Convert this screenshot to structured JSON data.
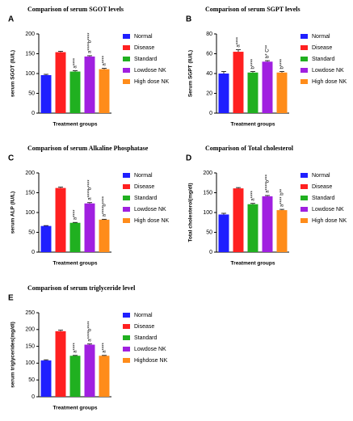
{
  "chart_data": [
    {
      "type": "bar",
      "panel": "A",
      "title": "Comparison of serum SGOT levels",
      "ylabel": "serum SGOT  (IU/L)",
      "xlabel": "Treatment groups",
      "categories": [
        "Normal",
        "Disease",
        "Standard",
        "Lowdose NK",
        "High dose NK"
      ],
      "colors": [
        "#1f1fff",
        "#ff2020",
        "#20b020",
        "#a020e0",
        "#ff8c1a"
      ],
      "values": [
        96,
        154,
        105,
        143,
        111
      ],
      "errors": [
        2,
        2,
        2,
        2,
        2
      ],
      "annotations": [
        null,
        null,
        "a****",
        "a****b****",
        "a****"
      ],
      "ylim": [
        0,
        200
      ],
      "yticks": [
        0,
        50,
        100,
        150,
        200
      ]
    },
    {
      "type": "bar",
      "panel": "B",
      "title": "Comparison of serum SGPT levels",
      "ylabel": "Serum SGPT  (IU/L)",
      "xlabel": "Treatment groups",
      "categories": [
        "Normal",
        "Disease",
        "Standard",
        "Lowdose NK",
        "High dose NK"
      ],
      "colors": [
        "#1f1fff",
        "#ff2020",
        "#20b020",
        "#a020e0",
        "#ff8c1a"
      ],
      "values": [
        40,
        62,
        41,
        52,
        41
      ],
      "errors": [
        2,
        2,
        1,
        1,
        1
      ],
      "annotations": [
        null,
        "a****",
        "b****",
        "b* C**",
        "b****"
      ],
      "ylim": [
        0,
        80
      ],
      "yticks": [
        0,
        20,
        40,
        60,
        80
      ]
    },
    {
      "type": "bar",
      "panel": "C",
      "title": "Comparison of serum Alkaline Phosphatase",
      "ylabel": "serum ALP  (IU/L)",
      "xlabel": "Treatment groups",
      "categories": [
        "Normal",
        "Disease",
        "Standard",
        "Lowdose NK",
        "High dose NK"
      ],
      "colors": [
        "#1f1fff",
        "#ff2020",
        "#20b020",
        "#a020e0",
        "#ff8c1a"
      ],
      "values": [
        66,
        162,
        74,
        123,
        82
      ],
      "errors": [
        1,
        2,
        1,
        2,
        1
      ],
      "annotations": [
        null,
        null,
        "a****",
        "a****b****",
        "a****b****"
      ],
      "ylim": [
        0,
        200
      ],
      "yticks": [
        0,
        50,
        100,
        150,
        200
      ]
    },
    {
      "type": "bar",
      "panel": "D",
      "title": "Comparison of Total cholesterol",
      "ylabel": "Total cholesterol(mg/dl)",
      "xlabel": "Treatment groups",
      "categories": [
        "Normal",
        "Disease",
        "Standard",
        "Lowdose NK",
        "High dose NK"
      ],
      "colors": [
        "#1f1fff",
        "#ff2020",
        "#20b020",
        "#a020e0",
        "#ff8c1a"
      ],
      "values": [
        95,
        161,
        121,
        141,
        106
      ],
      "errors": [
        3,
        2,
        2,
        2,
        2
      ],
      "annotations": [
        null,
        null,
        "a****",
        "a****b***",
        "a**** b**"
      ],
      "ylim": [
        0,
        200
      ],
      "yticks": [
        0,
        50,
        100,
        150,
        200
      ]
    },
    {
      "type": "bar",
      "panel": "E",
      "title": "Comparison of serum triglyceride level",
      "ylabel": "serum triglycerides(mg/dl)",
      "xlabel": "Treatment groups",
      "categories": [
        "Normal",
        "Disease",
        "Standard",
        "Lowdose NK",
        "Highdose NK"
      ],
      "colors": [
        "#1f1fff",
        "#ff2020",
        "#20b020",
        "#a020e0",
        "#ff8c1a"
      ],
      "values": [
        108,
        195,
        122,
        155,
        122
      ],
      "errors": [
        2,
        3,
        1,
        2,
        1
      ],
      "annotations": [
        null,
        null,
        "a****",
        "a****b****",
        "a****"
      ],
      "ylim": [
        0,
        250
      ],
      "yticks": [
        0,
        50,
        100,
        150,
        200,
        250
      ]
    }
  ]
}
